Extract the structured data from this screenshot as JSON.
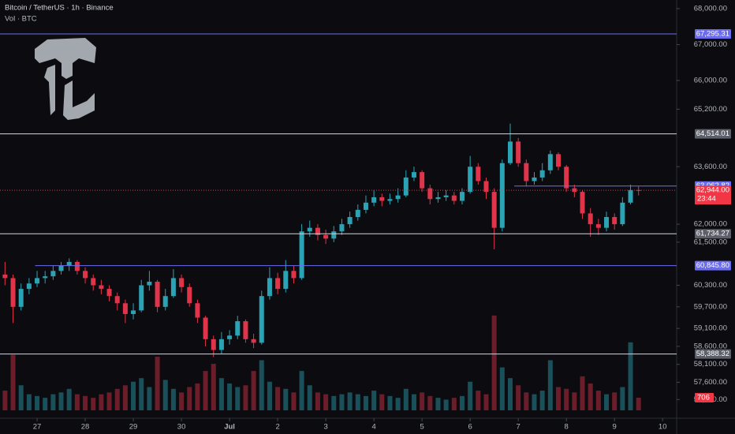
{
  "chart_data": {
    "type": "candlestick",
    "title": "Bitcoin / TetherUS · 1h · Binance",
    "subtitle": "Vol · BTC",
    "x": [
      -16,
      -12,
      -8,
      -4,
      0,
      4,
      8,
      12,
      16,
      20,
      24,
      28,
      32,
      36,
      40,
      44,
      48,
      52,
      56,
      60,
      64,
      68,
      72,
      76,
      80,
      84,
      88,
      92,
      96,
      100,
      104,
      108,
      112,
      116,
      120,
      124,
      128,
      132,
      136,
      140,
      144,
      148,
      152,
      156,
      160,
      164,
      168,
      172,
      176,
      180,
      184,
      188,
      192,
      196,
      200,
      204,
      208,
      212,
      216,
      220,
      224,
      228,
      232,
      236,
      240,
      244,
      248,
      252,
      256,
      260,
      264,
      268,
      272,
      276,
      280,
      284,
      288,
      292,
      296,
      300
    ],
    "open": [
      60600,
      60500,
      59700,
      60200,
      60350,
      60500,
      60550,
      60700,
      60850,
      60950,
      60700,
      60500,
      60300,
      60200,
      60000,
      59800,
      59500,
      59600,
      60300,
      60400,
      59700,
      60000,
      60500,
      60250,
      59800,
      59400,
      58800,
      58500,
      58800,
      58900,
      59300,
      58800,
      58700,
      60000,
      60500,
      60200,
      60700,
      60500,
      61800,
      61900,
      61700,
      61600,
      61800,
      62000,
      62200,
      62400,
      62600,
      62750,
      62650,
      62700,
      62800,
      63300,
      63450,
      63000,
      62700,
      62750,
      62800,
      62650,
      62900,
      63600,
      63200,
      62900,
      61900,
      63700,
      64300,
      63700,
      63200,
      63300,
      63500,
      63950,
      63600,
      63000,
      62900,
      62300,
      62000,
      61900,
      62200,
      62000,
      62600,
      62950
    ],
    "high": [
      60950,
      60600,
      60350,
      60500,
      60700,
      60700,
      60850,
      60950,
      61050,
      61000,
      60800,
      60600,
      60450,
      60300,
      60100,
      59900,
      59800,
      60450,
      60700,
      60450,
      60200,
      60750,
      60600,
      60350,
      59900,
      59450,
      58900,
      59000,
      59050,
      59450,
      59350,
      58950,
      60150,
      60800,
      60650,
      61000,
      60850,
      62000,
      62100,
      62000,
      61850,
      61950,
      62150,
      62350,
      62550,
      62800,
      62950,
      62850,
      62850,
      63000,
      63500,
      63600,
      63500,
      63100,
      62900,
      62950,
      62900,
      63000,
      63900,
      63700,
      63300,
      63000,
      63800,
      64800,
      64400,
      63800,
      63450,
      63700,
      64050,
      64000,
      63650,
      63100,
      62950,
      62450,
      62150,
      62350,
      62300,
      62750,
      63100,
      63050
    ],
    "low": [
      60300,
      59250,
      59600,
      60050,
      60250,
      60350,
      60450,
      60600,
      60700,
      60600,
      60350,
      60150,
      60050,
      59850,
      59600,
      59250,
      59350,
      59550,
      60150,
      59550,
      59600,
      59950,
      60100,
      59700,
      59250,
      58600,
      58300,
      58400,
      58650,
      58800,
      58700,
      58550,
      58650,
      59900,
      60050,
      60100,
      60350,
      60450,
      61650,
      61550,
      61450,
      61500,
      61700,
      61900,
      62100,
      62300,
      62500,
      62500,
      62550,
      62600,
      62750,
      63200,
      62900,
      62550,
      62600,
      62650,
      62550,
      62550,
      62850,
      63100,
      62700,
      61300,
      61800,
      63650,
      63600,
      63050,
      63100,
      63200,
      63400,
      63500,
      62900,
      62750,
      62150,
      61650,
      61700,
      61800,
      61850,
      61950,
      62550,
      62800
    ],
    "close": [
      60500,
      59700,
      60200,
      60350,
      60500,
      60550,
      60700,
      60850,
      60950,
      60700,
      60500,
      60300,
      60200,
      60000,
      59800,
      59500,
      59600,
      60300,
      60400,
      59700,
      60000,
      60500,
      60250,
      59800,
      59400,
      58800,
      58500,
      58800,
      58900,
      59300,
      58800,
      58700,
      60000,
      60500,
      60200,
      60700,
      60500,
      61800,
      61900,
      61700,
      61600,
      61800,
      62000,
      62200,
      62400,
      62600,
      62750,
      62650,
      62700,
      62800,
      63300,
      63450,
      63000,
      62700,
      62750,
      62800,
      62650,
      62900,
      63600,
      63200,
      62900,
      61900,
      63700,
      64300,
      63700,
      63200,
      63300,
      63500,
      63950,
      63600,
      63000,
      62900,
      62300,
      62000,
      61900,
      62200,
      62000,
      62600,
      62950,
      62944
    ],
    "volume": [
      1100,
      3100,
      1400,
      900,
      800,
      700,
      900,
      1000,
      1200,
      900,
      800,
      700,
      900,
      1000,
      1200,
      1400,
      1600,
      1800,
      1300,
      3000,
      1700,
      1200,
      1000,
      1300,
      1500,
      2200,
      2600,
      1800,
      1500,
      1300,
      1400,
      2200,
      2800,
      1600,
      1300,
      1200,
      1000,
      2200,
      1400,
      1000,
      900,
      800,
      900,
      1000,
      900,
      800,
      1100,
      900,
      800,
      700,
      1200,
      900,
      1000,
      800,
      700,
      600,
      700,
      800,
      1600,
      1100,
      900,
      5300,
      2400,
      1800,
      1400,
      1000,
      900,
      1100,
      2800,
      1300,
      1200,
      1000,
      1900,
      1500,
      1100,
      900,
      1000,
      1300,
      3800,
      706
    ],
    "up_color": "#2aa3b5",
    "down_color": "#e0344b",
    "xlim": [
      -18.5,
      319
    ],
    "xticks": [
      {
        "value": 0,
        "label": "27"
      },
      {
        "value": 24,
        "label": "28"
      },
      {
        "value": 48,
        "label": "29"
      },
      {
        "value": 72,
        "label": "30"
      },
      {
        "value": 96,
        "label": "Jul"
      },
      {
        "value": 120,
        "label": "2"
      },
      {
        "value": 144,
        "label": "3"
      },
      {
        "value": 168,
        "label": "4"
      },
      {
        "value": 192,
        "label": "5"
      },
      {
        "value": 216,
        "label": "6"
      },
      {
        "value": 240,
        "label": "7"
      },
      {
        "value": 264,
        "label": "8"
      },
      {
        "value": 288,
        "label": "9"
      },
      {
        "value": 312,
        "label": "10"
      }
    ],
    "ylim": [
      56600,
      68240
    ],
    "yticks": [
      {
        "value": 68000,
        "label": "68,000.00"
      },
      {
        "value": 67000,
        "label": "67,000.00"
      },
      {
        "value": 66000,
        "label": "66,000.00"
      },
      {
        "value": 65200,
        "label": "65,200.00"
      },
      {
        "value": 63600,
        "label": "63,600.00"
      },
      {
        "value": 62000,
        "label": "62,000.00"
      },
      {
        "value": 61500,
        "label": "61,500.00"
      },
      {
        "value": 60300,
        "label": "60,300.00"
      },
      {
        "value": 59700,
        "label": "59,700.00"
      },
      {
        "value": 59100,
        "label": "59,100.00"
      },
      {
        "value": 58600,
        "label": "58,600.00"
      },
      {
        "value": 58100,
        "label": "58,100.00"
      },
      {
        "value": 57600,
        "label": "57,600.00"
      },
      {
        "value": 57120,
        "label": "57,120.00"
      }
    ],
    "vlim": [
      0,
      12000
    ],
    "levels": [
      {
        "value": 67295.31,
        "label": "67,295.31",
        "color": "#6b6bf0",
        "x_start": -18.5
      },
      {
        "value": 64514.01,
        "label": "64,514.01",
        "color": "#d1d4dc",
        "x_start": -18.5
      },
      {
        "value": 63062.82,
        "label": "63,062.82",
        "color": "#6b6bf0",
        "x_start": 238
      },
      {
        "value": 61734.27,
        "label": "61,734.27",
        "color": "#d1d4dc",
        "x_start": -18.5
      },
      {
        "value": 60845.8,
        "label": "60,845.80",
        "color": "#6b6bf0",
        "x_start": -1
      },
      {
        "value": 58388.32,
        "label": "58,388.32",
        "color": "#d1d4dc",
        "x_start": -18.5
      }
    ],
    "last_price": {
      "value": 62944,
      "label": "62,944.00",
      "countdown": "23:44"
    }
  }
}
